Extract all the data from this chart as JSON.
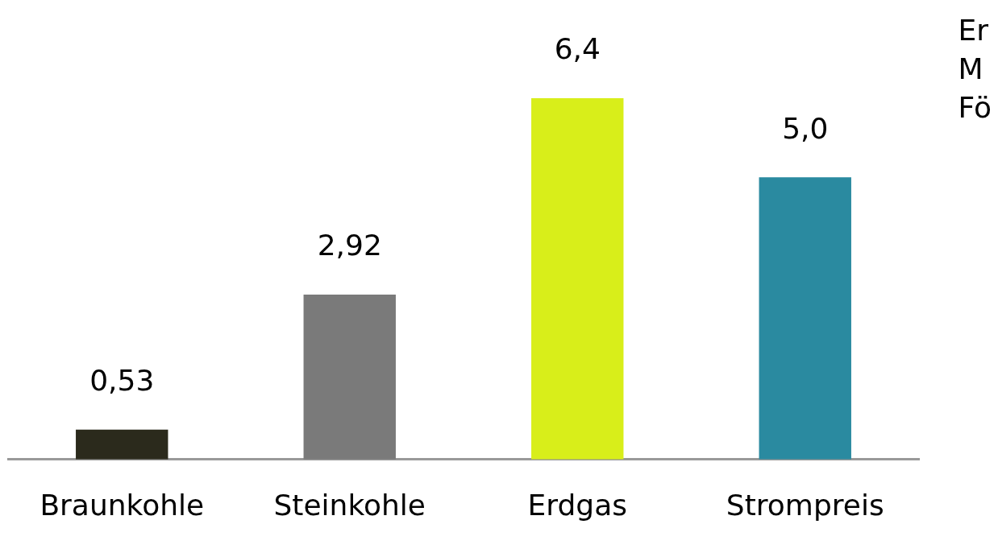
{
  "chart_data": {
    "type": "bar",
    "categories": [
      "Braunkohle",
      "Steinkohle",
      "Erdgas",
      "Strompreis"
    ],
    "values": [
      0.53,
      2.92,
      6.4,
      5.0
    ],
    "colors": [
      "#2b2a1c",
      "#7a7a7a",
      "#d8ee1a",
      "#2a8aa0"
    ],
    "value_labels": [
      "0,53",
      "2,92",
      "6,4",
      "5,0"
    ],
    "tick_labels": "x",
    "grid": false,
    "legend": false,
    "annotations": [
      "Er",
      "M",
      "Fö"
    ]
  }
}
